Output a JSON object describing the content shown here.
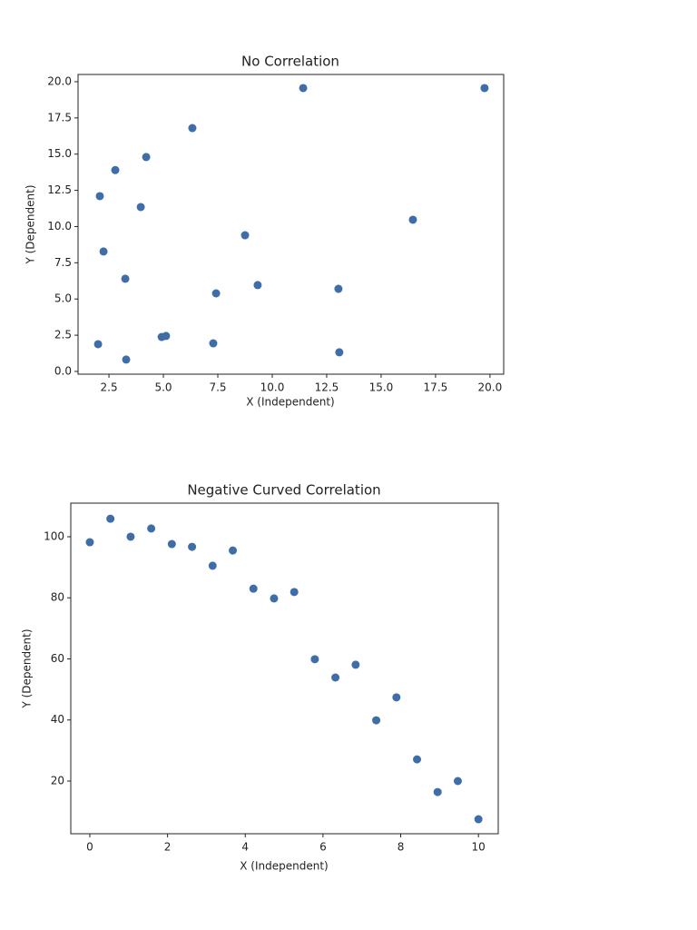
{
  "chart_data": [
    {
      "type": "scatter",
      "title": "No Correlation",
      "x_label": "X (Independent)",
      "y_label": "Y (Dependent)",
      "color": "#3f6ea6",
      "x": [
        2.08,
        2.79,
        4.21,
        6.33,
        11.42,
        19.75,
        3.96,
        2.25,
        8.75,
        16.46,
        3.25,
        9.33,
        7.42,
        13.04,
        2.0,
        4.92,
        5.12,
        7.29,
        3.29,
        13.08
      ],
      "values": [
        12.1,
        13.9,
        14.8,
        16.8,
        19.56,
        19.56,
        11.35,
        8.28,
        9.4,
        10.47,
        6.4,
        5.96,
        5.39,
        5.7,
        1.88,
        2.38,
        2.45,
        1.94,
        0.82,
        1.32
      ],
      "xlim": [
        1.08,
        20.63
      ],
      "ylim": [
        -0.19,
        20.5
      ],
      "xticks": [
        {
          "value": 2.5,
          "label": "2.5"
        },
        {
          "value": 5,
          "label": "5.0"
        },
        {
          "value": 7.5,
          "label": "7.5"
        },
        {
          "value": 10,
          "label": "10.0"
        },
        {
          "value": 12.5,
          "label": "12.5"
        },
        {
          "value": 15,
          "label": "15.0"
        },
        {
          "value": 17.5,
          "label": "17.5"
        },
        {
          "value": 20,
          "label": "20.0"
        }
      ],
      "yticks": [
        {
          "value": 0,
          "label": "0.0"
        },
        {
          "value": 2.5,
          "label": "2.5"
        },
        {
          "value": 5,
          "label": "5.0"
        },
        {
          "value": 7.5,
          "label": "7.5"
        },
        {
          "value": 10,
          "label": "10.0"
        },
        {
          "value": 12.5,
          "label": "12.5"
        },
        {
          "value": 15,
          "label": "15.0"
        },
        {
          "value": 17.5,
          "label": "17.5"
        },
        {
          "value": 20,
          "label": "20.0"
        }
      ]
    },
    {
      "type": "scatter",
      "title": "Negative Curved Correlation",
      "x_label": "X (Independent)",
      "y_label": "Y (Dependent)",
      "color": "#3f6ea6",
      "x": [
        0,
        0.53,
        1.05,
        1.58,
        2.11,
        2.63,
        3.16,
        3.68,
        4.21,
        4.74,
        5.26,
        5.79,
        6.32,
        6.84,
        7.37,
        7.89,
        8.42,
        8.95,
        9.47,
        10
      ],
      "values": [
        98.2,
        105.9,
        100,
        102.7,
        97.6,
        96.7,
        90.5,
        95.5,
        83.0,
        79.8,
        81.9,
        59.9,
        53.9,
        58.1,
        39.9,
        47.4,
        27.1,
        16.4,
        20.0,
        7.5
      ],
      "xlim": [
        -0.49,
        10.51
      ],
      "ylim": [
        2.75,
        111.0
      ],
      "xticks": [
        0,
        2,
        4,
        6,
        8,
        10
      ],
      "yticks": [
        20,
        40,
        60,
        80,
        100
      ]
    }
  ]
}
